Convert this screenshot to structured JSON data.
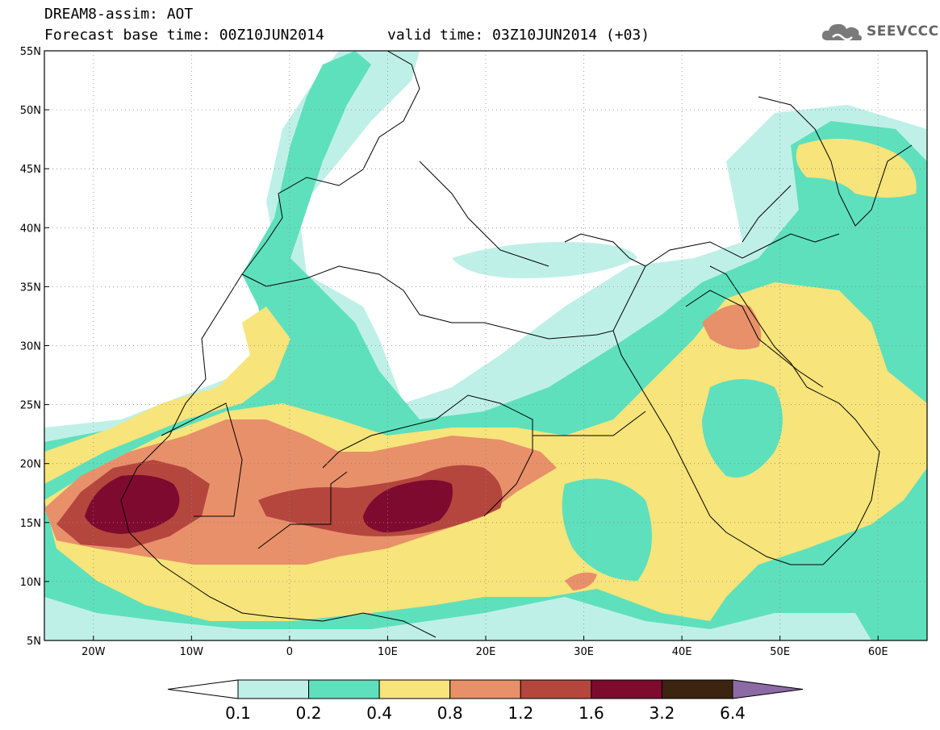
{
  "header": {
    "line1": "DREAM8-assim: AOT",
    "line2a": "Forecast base time: 00Z10JUN2014",
    "line2b": "valid time: 03Z10JUN2014 (+03)",
    "logo_text": "SEEVCCC"
  },
  "map": {
    "extent": {
      "lon": [
        -25,
        65
      ],
      "lat": [
        5,
        55
      ]
    },
    "lon_ticks": [
      "20W",
      "10W",
      "0",
      "10E",
      "20E",
      "30E",
      "40E",
      "50E",
      "60E"
    ],
    "lat_ticks": [
      "5N",
      "10N",
      "15N",
      "20N",
      "25N",
      "30N",
      "35N",
      "40N",
      "45N",
      "50N",
      "55N"
    ],
    "grid": "dotted",
    "variable": "Aerosol Optical Thickness"
  },
  "colorbar": {
    "labels": [
      "0.1",
      "0.2",
      "0.4",
      "0.8",
      "1.2",
      "1.6",
      "3.2",
      "6.4"
    ],
    "colors": [
      "#ffffff",
      "#bff0e8",
      "#5ee0bc",
      "#f7e47a",
      "#e8906a",
      "#b5463e",
      "#7f0a2f",
      "#3d2410",
      "#8c6aa6"
    ]
  }
}
